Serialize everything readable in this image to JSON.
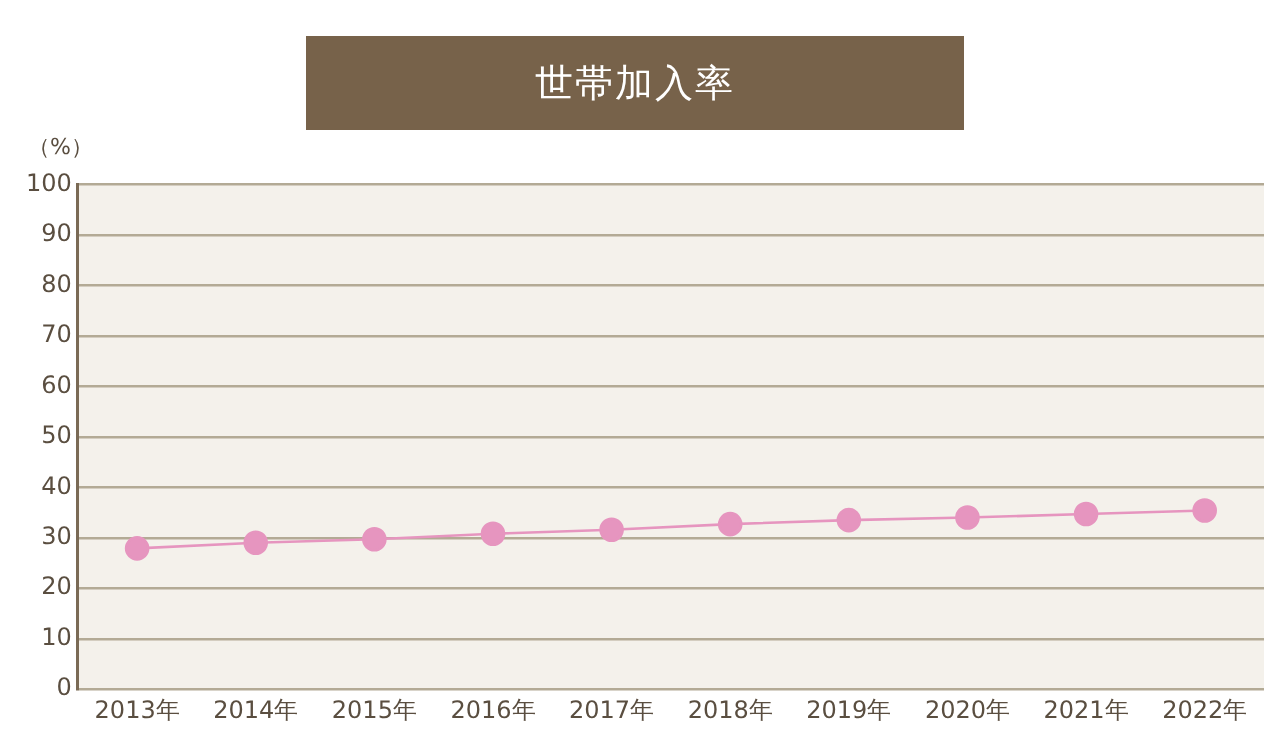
{
  "chart_data": {
    "type": "line",
    "title": "世帯加入率",
    "ylabel": "（%）",
    "categories": [
      "2013年",
      "2014年",
      "2015年",
      "2016年",
      "2017年",
      "2018年",
      "2019年",
      "2020年",
      "2021年",
      "2022年"
    ],
    "series": [
      {
        "color": "#e695bf",
        "values": [
          27.9,
          29.0,
          29.7,
          30.8,
          31.6,
          32.7,
          33.5,
          34.0,
          34.7,
          35.4
        ]
      }
    ],
    "ylim": [
      0,
      100
    ],
    "yticks": [
      0,
      10,
      20,
      30,
      40,
      50,
      60,
      70,
      80,
      90,
      100
    ],
    "grid": "y",
    "legend": false,
    "marker": "circle"
  }
}
